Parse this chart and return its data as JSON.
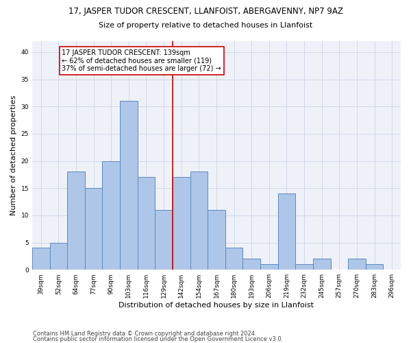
{
  "title": "17, JASPER TUDOR CRESCENT, LLANFOIST, ABERGAVENNY, NP7 9AZ",
  "subtitle": "Size of property relative to detached houses in Llanfoist",
  "xlabel": "Distribution of detached houses by size in Llanfoist",
  "ylabel": "Number of detached properties",
  "categories": [
    "39sqm",
    "52sqm",
    "64sqm",
    "77sqm",
    "90sqm",
    "103sqm",
    "116sqm",
    "129sqm",
    "142sqm",
    "154sqm",
    "167sqm",
    "180sqm",
    "193sqm",
    "206sqm",
    "219sqm",
    "232sqm",
    "245sqm",
    "257sqm",
    "270sqm",
    "283sqm",
    "296sqm"
  ],
  "values": [
    4,
    5,
    18,
    15,
    20,
    31,
    17,
    11,
    17,
    18,
    11,
    4,
    2,
    1,
    14,
    1,
    2,
    0,
    2,
    1,
    0
  ],
  "bar_color": "#aec6e8",
  "bar_edge_color": "#5a8abf",
  "property_line_x": 7.5,
  "annotation_text": "17 JASPER TUDOR CRESCENT: 139sqm\n← 62% of detached houses are smaller (119)\n37% of semi-detached houses are larger (72) →",
  "annotation_box_color": "#ffffff",
  "annotation_box_edge": "#cc0000",
  "vertical_line_color": "#cc0000",
  "ylim": [
    0,
    42
  ],
  "yticks": [
    0,
    5,
    10,
    15,
    20,
    25,
    30,
    35,
    40
  ],
  "grid_color": "#d0d8e8",
  "background_color": "#eef2f8",
  "footer_line1": "Contains HM Land Registry data © Crown copyright and database right 2024.",
  "footer_line2": "Contains public sector information licensed under the Open Government Licence v3.0.",
  "title_fontsize": 8.5,
  "subtitle_fontsize": 8,
  "xlabel_fontsize": 8,
  "ylabel_fontsize": 8,
  "tick_fontsize": 6.5,
  "footer_fontsize": 6,
  "annotation_fontsize": 7
}
